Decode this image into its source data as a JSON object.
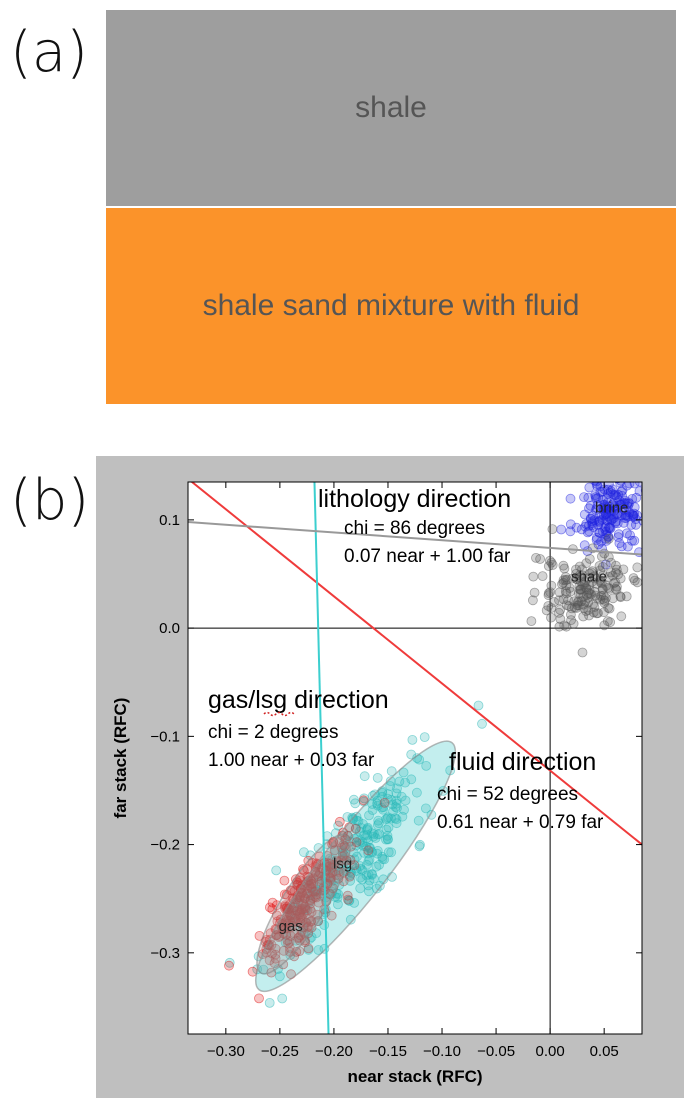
{
  "panel_a": {
    "label": "(a)",
    "top_layer": "shale",
    "bottom_layer": "shale sand mixture with fluid",
    "colors": {
      "top_layer": "#9e9e9e",
      "bottom_layer": "#fb932a"
    }
  },
  "panel_b": {
    "label": "(b)"
  },
  "chart_data": {
    "type": "scatter",
    "xlabel": "near stack (RFC)",
    "ylabel": "far stack (RFC)",
    "xlim": [
      -0.335,
      0.085
    ],
    "ylim": [
      -0.375,
      0.135
    ],
    "xticks": [
      -0.3,
      -0.25,
      -0.2,
      -0.15,
      -0.1,
      -0.05,
      0.0,
      0.05
    ],
    "xtick_labels": [
      "−0.30",
      "−0.25",
      "−0.20",
      "−0.15",
      "−0.10",
      "−0.05",
      "0.00",
      "0.05"
    ],
    "yticks": [
      0.1,
      0.0,
      -0.1,
      -0.2,
      -0.3
    ],
    "ytick_labels": [
      "0.1",
      "0.0",
      "−0.1",
      "−0.2",
      "−0.3"
    ],
    "grid": false,
    "zero_axes": true,
    "clusters": [
      {
        "label": "brine",
        "center": [
          0.057,
          0.107
        ],
        "std": [
          0.017,
          0.017
        ],
        "count": 180,
        "color": "#1f22e0"
      },
      {
        "label": "shale",
        "center": [
          0.033,
          0.035
        ],
        "std": [
          0.02,
          0.018
        ],
        "count": 170,
        "color": "#555555"
      },
      {
        "label": "lsg",
        "center": [
          -0.18,
          -0.21
        ],
        "std": [
          0.035,
          0.045
        ],
        "count": 260,
        "color": "#26b5b5"
      },
      {
        "label": "gas",
        "center": [
          -0.228,
          -0.255
        ],
        "std": [
          0.022,
          0.03
        ],
        "count": 260,
        "color": "#e01010"
      }
    ],
    "ellipses": [
      {
        "name": "lsg-ellipse",
        "center": [
          -0.18,
          -0.22
        ],
        "width": 0.29,
        "height": 0.06,
        "angle_deg": 52,
        "color": "#26c1c1"
      },
      {
        "name": "gas-ellipse",
        "center": [
          -0.228,
          -0.255
        ],
        "width": 0.15,
        "height": 0.04,
        "angle_deg": 58,
        "color": "#a0a0a0"
      }
    ],
    "lines": [
      {
        "name": "fluid",
        "color": "#ef3b3b",
        "points": [
          [
            -0.335,
            0.138
          ],
          [
            0.085,
            -0.2
          ]
        ]
      },
      {
        "name": "gas-lsg",
        "color": "#3ccfcf",
        "points": [
          [
            -0.218,
            0.135
          ],
          [
            -0.205,
            -0.375
          ]
        ]
      },
      {
        "name": "lithology",
        "color": "#999999",
        "points": [
          [
            -0.335,
            0.098
          ],
          [
            0.085,
            0.068
          ]
        ]
      }
    ],
    "annotations": {
      "lithology": {
        "title": "lithology direction",
        "chi": "chi = 86 degrees",
        "equation": "0.07 near + 1.00 far"
      },
      "gas_lsg": {
        "title": "gas/lsg direction",
        "chi": "chi = 2 degrees",
        "equation": "1.00 near + 0.03 far"
      },
      "fluid": {
        "title": "fluid direction",
        "chi": "chi = 52 degrees",
        "equation": "0.61 near + 0.79 far"
      }
    }
  }
}
